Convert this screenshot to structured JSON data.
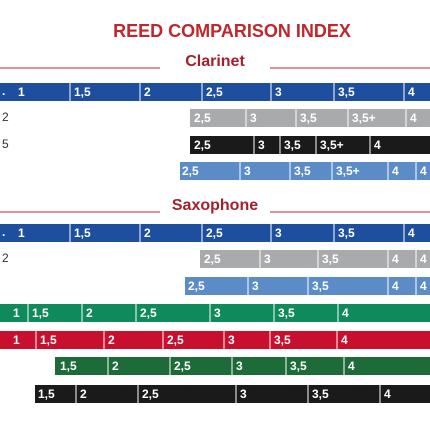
{
  "title": "REED COMPARISON INDEX",
  "sections": [
    {
      "title": "Clarinet",
      "rows": [
        {
          "brand": ".",
          "color": "#1d4f9e",
          "labels": [
            "1",
            "1,5",
            "2",
            "2,5",
            "3",
            "3,5",
            "4"
          ]
        },
        {
          "brand": "2",
          "color": "#a9aaac",
          "labels": [
            "2,5",
            "3",
            "3,5",
            "3,5+",
            "4"
          ]
        },
        {
          "brand": "5",
          "color": "#1a1a1a",
          "labels": [
            "2,5",
            "3",
            "3,5",
            "3,5+",
            "4"
          ]
        },
        {
          "color": "#5b8cc8",
          "labels": [
            "2,5",
            "3",
            "3,5",
            "3,5+",
            "4",
            "4"
          ]
        }
      ]
    },
    {
      "title": "Saxophone",
      "rows": [
        {
          "brand": ".",
          "color": "#1d4f9e",
          "labels": [
            "1",
            "1,5",
            "2",
            "2,5",
            "3",
            "3,5",
            "4"
          ]
        },
        {
          "brand": "2",
          "color": "#a9aaac",
          "labels": [
            "2,5",
            "3",
            "3,5",
            "4",
            "4"
          ]
        },
        {
          "color": "#5b8cc8",
          "labels": [
            "2,5",
            "3",
            "3,5",
            "4",
            "4"
          ]
        },
        {
          "color": "#0f8a5c",
          "labels": [
            "1",
            "1,5",
            "2",
            "2,5",
            "3",
            "3,5",
            "4"
          ]
        },
        {
          "color": "#c8102e",
          "labels": [
            "1",
            "1,5",
            "2",
            "2,5",
            "3",
            "3,5",
            "4"
          ]
        },
        {
          "color": "#1e6b3a",
          "labels": [
            "1,5",
            "2",
            "2,5",
            "3",
            "3,5",
            "4"
          ]
        },
        {
          "color": "#1a1a1a",
          "labels": [
            "1,5",
            "2",
            "2,5",
            "3",
            "3,5",
            "4"
          ]
        }
      ]
    }
  ]
}
